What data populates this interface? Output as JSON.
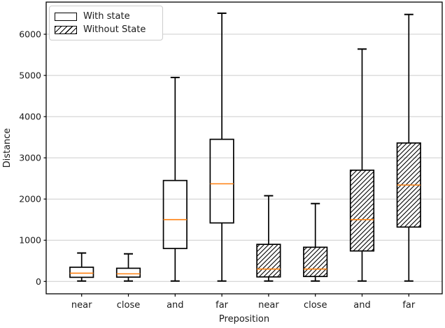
{
  "chart_data": {
    "type": "boxplot",
    "title": "",
    "xlabel": "Preposition",
    "ylabel": "Distance",
    "categories": [
      "near",
      "close",
      "and",
      "far",
      "near",
      "close",
      "and",
      "far"
    ],
    "ytick_values": [
      0,
      1000,
      2000,
      3000,
      4000,
      5000,
      6000
    ],
    "ylim": [
      -300,
      6780
    ],
    "grid": "horizontal",
    "legend_position": "upper-left",
    "colors": {
      "box_edge": "#000000",
      "median": "#ff7f0e",
      "grid": "#cccccc",
      "background": "#ffffff",
      "legend_border": "#cccccc"
    },
    "legend": [
      {
        "label": "With state",
        "hatch": false
      },
      {
        "label": "Without State",
        "hatch": true
      }
    ],
    "series": [
      {
        "group": "With state",
        "category": "near",
        "hatch": false,
        "whislo": 10,
        "q1": 100,
        "med": 200,
        "q3": 345,
        "whishi": 690
      },
      {
        "group": "With state",
        "category": "close",
        "hatch": false,
        "whislo": 10,
        "q1": 105,
        "med": 185,
        "q3": 320,
        "whishi": 670
      },
      {
        "group": "With state",
        "category": "and",
        "hatch": false,
        "whislo": 10,
        "q1": 800,
        "med": 1500,
        "q3": 2450,
        "whishi": 4950
      },
      {
        "group": "With state",
        "category": "far",
        "hatch": false,
        "whislo": 10,
        "q1": 1420,
        "med": 2370,
        "q3": 3450,
        "whishi": 6510
      },
      {
        "group": "Without State",
        "category": "near",
        "hatch": true,
        "whislo": 10,
        "q1": 110,
        "med": 300,
        "q3": 900,
        "whishi": 2080
      },
      {
        "group": "Without State",
        "category": "close",
        "hatch": true,
        "whislo": 10,
        "q1": 120,
        "med": 300,
        "q3": 830,
        "whishi": 1890
      },
      {
        "group": "Without State",
        "category": "and",
        "hatch": true,
        "whislo": 10,
        "q1": 740,
        "med": 1500,
        "q3": 2700,
        "whishi": 5640
      },
      {
        "group": "Without State",
        "category": "far",
        "hatch": true,
        "whislo": 10,
        "q1": 1320,
        "med": 2340,
        "q3": 3360,
        "whishi": 6480
      }
    ]
  }
}
